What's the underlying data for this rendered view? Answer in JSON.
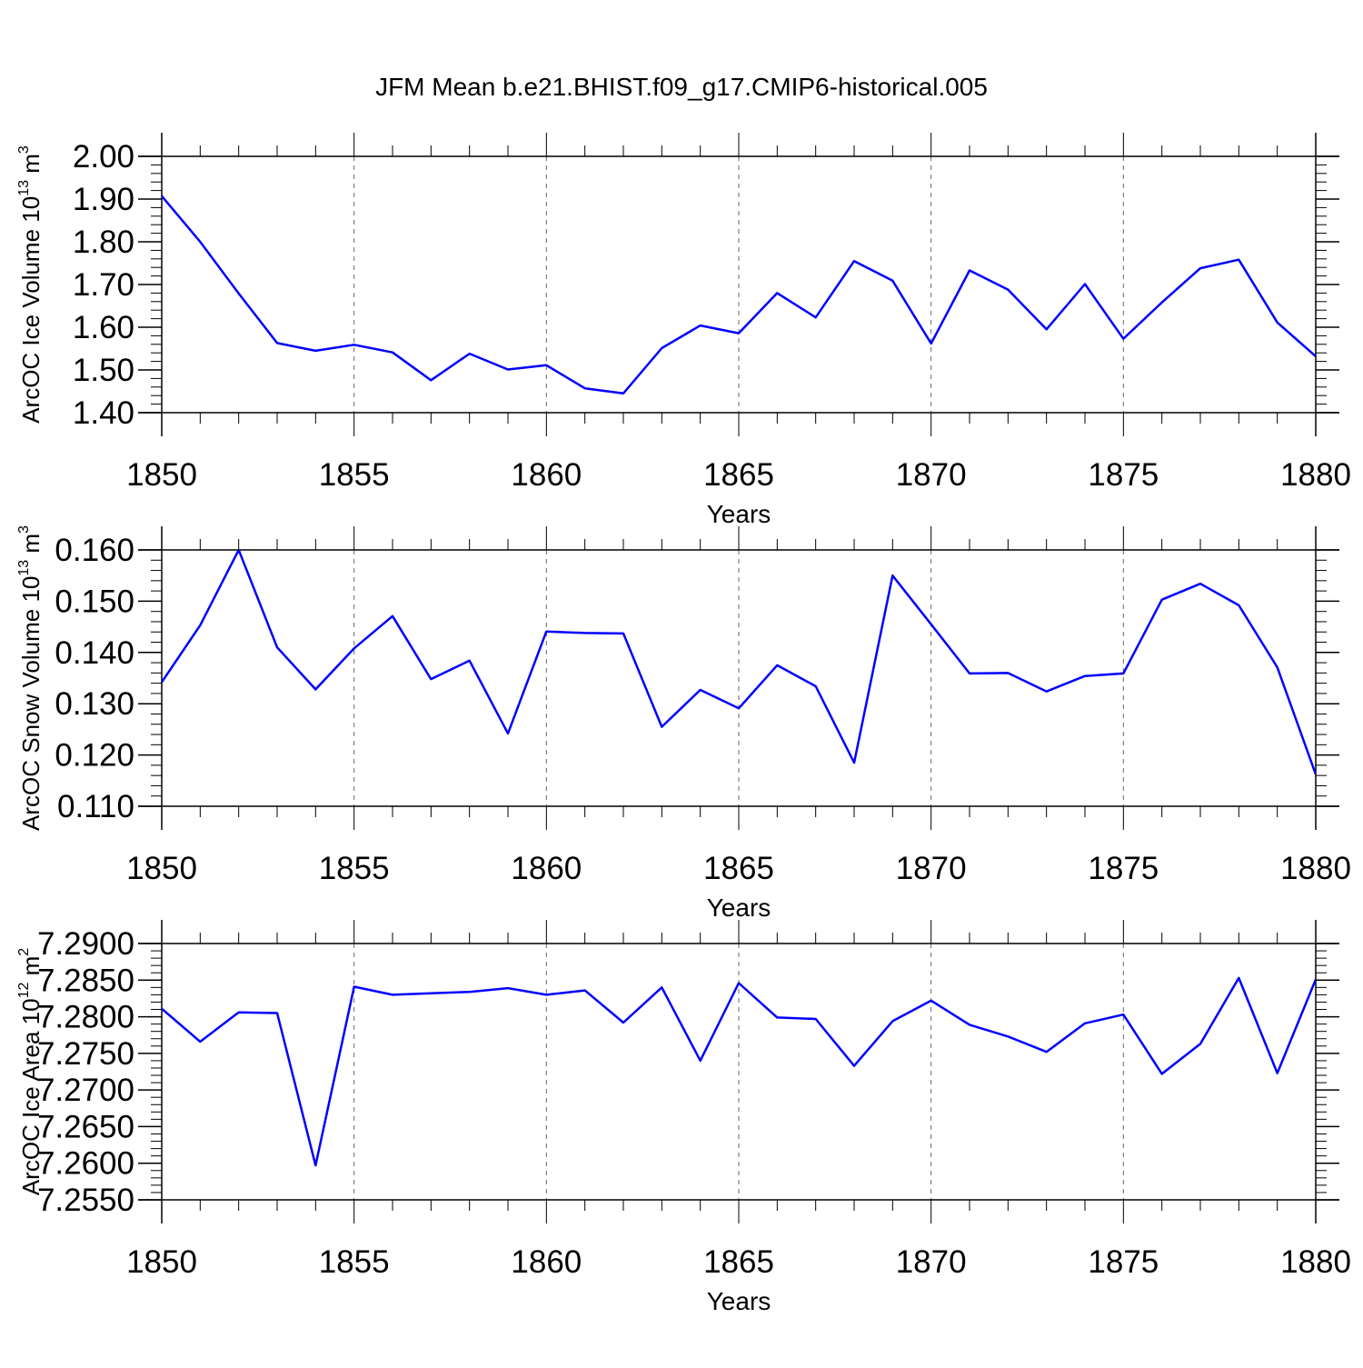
{
  "chart_data": {
    "title": "JFM Mean b.e21.BHIST.f09_g17.CMIP6-historical.005",
    "type": "line",
    "x": [
      1850,
      1851,
      1852,
      1853,
      1854,
      1855,
      1856,
      1857,
      1858,
      1859,
      1860,
      1861,
      1862,
      1863,
      1864,
      1865,
      1866,
      1867,
      1868,
      1869,
      1870,
      1871,
      1872,
      1873,
      1874,
      1875,
      1876,
      1877,
      1878,
      1879,
      1880
    ],
    "xlim": [
      1850,
      1880
    ],
    "xticks": [
      "1850",
      "1855",
      "1860",
      "1865",
      "1870",
      "1875",
      "1880"
    ],
    "line_color": "#0000ff",
    "panels": [
      {
        "ylabel": "ArcOC Ice Volume 10",
        "ylabel_sup": "13",
        "ylabel_unit": " m",
        "ylabel_unit_sup": "3",
        "xlabel": "Years",
        "ylim": [
          1.4,
          2.0
        ],
        "yticks": [
          "1.40",
          "1.50",
          "1.60",
          "1.70",
          "1.80",
          "1.90",
          "2.00"
        ],
        "values": [
          1.907,
          1.8,
          1.679,
          1.563,
          1.545,
          1.559,
          1.541,
          1.476,
          1.538,
          1.501,
          1.511,
          1.457,
          1.445,
          1.551,
          1.604,
          1.586,
          1.68,
          1.623,
          1.755,
          1.709,
          1.562,
          1.733,
          1.688,
          1.595,
          1.701,
          1.573,
          1.658,
          1.738,
          1.758,
          1.611,
          1.532
        ]
      },
      {
        "ylabel": "ArcOC Snow Volume 10",
        "ylabel_sup": "13",
        "ylabel_unit": " m",
        "ylabel_unit_sup": "3",
        "xlabel": "Years",
        "ylim": [
          0.11,
          0.16
        ],
        "yticks": [
          "0.110",
          "0.120",
          "0.130",
          "0.140",
          "0.150",
          "0.160"
        ],
        "values": [
          0.1342,
          0.1453,
          0.16,
          0.141,
          0.1328,
          0.1408,
          0.1471,
          0.1348,
          0.1384,
          0.1242,
          0.1441,
          0.1438,
          0.1437,
          0.1255,
          0.1327,
          0.1291,
          0.1375,
          0.1334,
          0.1185,
          0.155,
          0.1455,
          0.1359,
          0.136,
          0.1324,
          0.1354,
          0.1359,
          0.1503,
          0.1534,
          0.1492,
          0.1371,
          0.1162
        ]
      },
      {
        "ylabel": "ArcOC Ice Area 10",
        "ylabel_sup": "12",
        "ylabel_unit": " m",
        "ylabel_unit_sup": "2",
        "xlabel": "Years",
        "ylim": [
          7.255,
          7.29
        ],
        "yticks": [
          "7.2550",
          "7.2600",
          "7.2650",
          "7.2700",
          "7.2750",
          "7.2800",
          "7.2850",
          "7.2900"
        ],
        "values": [
          7.2811,
          7.2766,
          7.2806,
          7.2805,
          7.2597,
          7.2841,
          7.283,
          7.2832,
          7.2834,
          7.2839,
          7.283,
          7.2836,
          7.2792,
          7.284,
          7.274,
          7.2846,
          7.2799,
          7.2797,
          7.2733,
          7.2794,
          7.2822,
          7.2789,
          7.2773,
          7.2752,
          7.2791,
          7.2803,
          7.2722,
          7.2763,
          7.2853,
          7.2723,
          7.2851
        ]
      }
    ]
  }
}
